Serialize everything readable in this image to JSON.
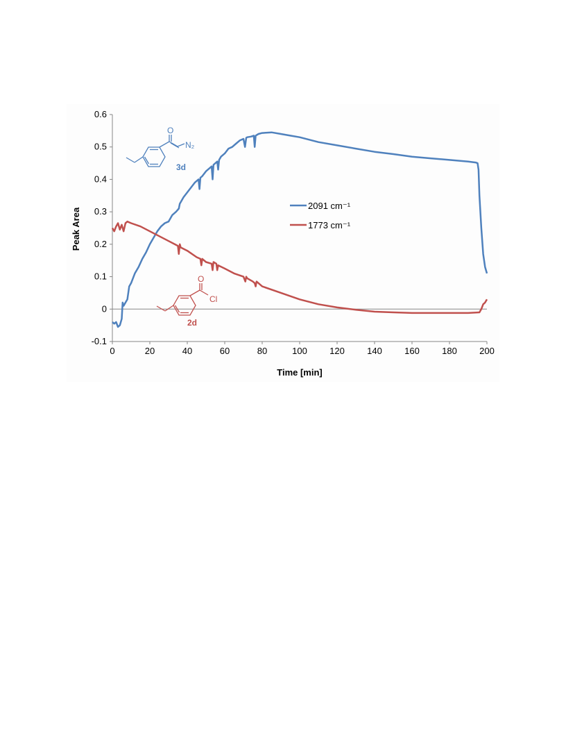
{
  "chart_data": {
    "type": "line",
    "xlabel": "Time [min]",
    "ylabel": "Peak Area",
    "xlim": [
      0,
      200
    ],
    "ylim": [
      -0.1,
      0.6
    ],
    "x_ticks": [
      "0",
      "20",
      "40",
      "60",
      "80",
      "100",
      "120",
      "140",
      "160",
      "180",
      "200"
    ],
    "y_ticks": [
      "-0.1",
      "0",
      "0.1",
      "0.2",
      "0.3",
      "0.4",
      "0.5",
      "0.6"
    ],
    "grid": false,
    "legend_position": "center-right",
    "series": [
      {
        "name": "2091 cm⁻¹",
        "color": "#4f81bd",
        "x": [
          0,
          1,
          2,
          3,
          4,
          5,
          5.5,
          6,
          7,
          8,
          9,
          10,
          12,
          14,
          16,
          18,
          20,
          22,
          24,
          26,
          28,
          30,
          32,
          34,
          35.5,
          36,
          36.5,
          38,
          40,
          42,
          44,
          46,
          46.5,
          47,
          48,
          50,
          52,
          53,
          53.5,
          54,
          55,
          56,
          56.5,
          57,
          58,
          60,
          62,
          64,
          66,
          68,
          70,
          70.8,
          71.5,
          72,
          74,
          75.5,
          76,
          76.5,
          78,
          80,
          85,
          90,
          95,
          100,
          110,
          120,
          130,
          140,
          150,
          160,
          170,
          180,
          190,
          194,
          195,
          195.5,
          196,
          197,
          198,
          199,
          200
        ],
        "values": [
          -0.04,
          -0.045,
          -0.04,
          -0.055,
          -0.05,
          -0.03,
          0.02,
          0.01,
          0.02,
          0.03,
          0.07,
          0.08,
          0.11,
          0.13,
          0.155,
          0.175,
          0.2,
          0.22,
          0.24,
          0.255,
          0.265,
          0.27,
          0.29,
          0.3,
          0.31,
          0.325,
          0.33,
          0.345,
          0.36,
          0.375,
          0.39,
          0.4,
          0.37,
          0.405,
          0.41,
          0.425,
          0.435,
          0.44,
          0.4,
          0.445,
          0.45,
          0.455,
          0.43,
          0.46,
          0.47,
          0.48,
          0.495,
          0.5,
          0.51,
          0.52,
          0.525,
          0.5,
          0.528,
          0.53,
          0.532,
          0.535,
          0.5,
          0.535,
          0.54,
          0.543,
          0.545,
          0.54,
          0.535,
          0.53,
          0.515,
          0.505,
          0.495,
          0.485,
          0.478,
          0.47,
          0.465,
          0.46,
          0.455,
          0.452,
          0.45,
          0.43,
          0.35,
          0.25,
          0.17,
          0.13,
          0.11
        ]
      },
      {
        "name": "1773 cm⁻¹",
        "color": "#c0504d",
        "x": [
          0,
          1,
          2,
          3,
          4,
          5,
          6,
          7,
          8,
          10,
          15,
          20,
          25,
          30,
          35,
          35.5,
          36,
          36.5,
          40,
          45,
          47,
          47.5,
          48,
          50,
          53,
          53.5,
          54,
          55.5,
          56,
          56.5,
          60,
          65,
          70,
          71,
          71.5,
          72,
          75,
          76,
          76.5,
          77,
          80,
          90,
          100,
          110,
          120,
          130,
          140,
          150,
          160,
          170,
          180,
          190,
          196,
          197,
          198,
          199,
          200
        ],
        "values": [
          0.25,
          0.24,
          0.255,
          0.265,
          0.245,
          0.26,
          0.24,
          0.265,
          0.27,
          0.265,
          0.255,
          0.24,
          0.225,
          0.21,
          0.195,
          0.17,
          0.2,
          0.19,
          0.18,
          0.16,
          0.155,
          0.135,
          0.155,
          0.145,
          0.14,
          0.12,
          0.145,
          0.14,
          0.12,
          0.135,
          0.125,
          0.11,
          0.1,
          0.085,
          0.1,
          0.095,
          0.085,
          0.08,
          0.07,
          0.085,
          0.07,
          0.05,
          0.03,
          0.015,
          0.005,
          -0.002,
          -0.008,
          -0.01,
          -0.012,
          -0.012,
          -0.012,
          -0.012,
          -0.01,
          0.0,
          0.015,
          0.02,
          0.03
        ]
      }
    ]
  },
  "annotations": {
    "mol_3d_label": "3d",
    "mol_3d_n2": "N₂",
    "mol_3d_o": "O",
    "mol_2d_label": "2d",
    "mol_2d_o": "O",
    "mol_2d_cl": "Cl"
  }
}
